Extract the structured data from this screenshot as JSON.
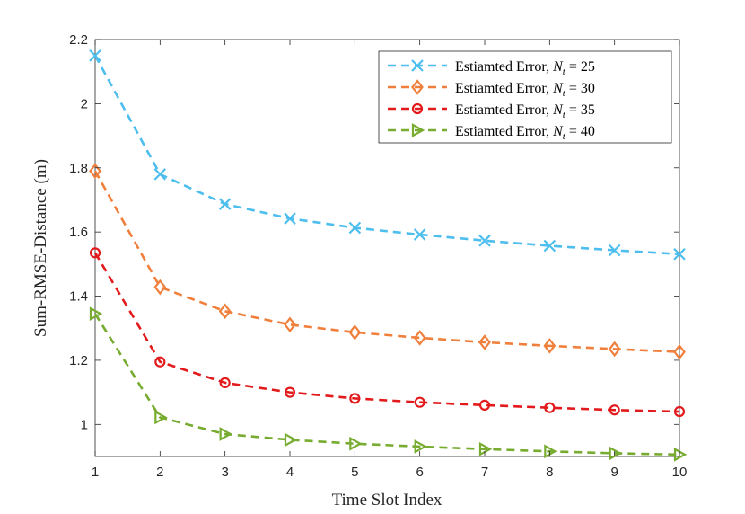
{
  "chart_data": {
    "type": "line",
    "title": "",
    "xlabel": "Time Slot Index",
    "ylabel": "Sum-RMSE-Distance (m)",
    "xlim": [
      1,
      10
    ],
    "ylim": [
      0.9,
      2.2
    ],
    "xticks": [
      1,
      2,
      3,
      4,
      5,
      6,
      7,
      8,
      9,
      10
    ],
    "yticks": [
      1,
      1.2,
      1.4,
      1.6,
      1.8,
      2,
      2.2
    ],
    "ytick_labels": [
      "1",
      "1.2",
      "1.4",
      "1.6",
      "1.8",
      "2",
      "2.2"
    ],
    "grid": false,
    "legend_position": "top-right",
    "x": [
      1,
      2,
      3,
      4,
      5,
      6,
      7,
      8,
      9,
      10
    ],
    "series": [
      {
        "name": "Estiamted Error, N_t = 25",
        "legend_prefix": "Estiamted Error, ",
        "legend_sym": "N",
        "legend_sub": "t",
        "legend_suffix": " = 25",
        "color": "#4DBEEE",
        "marker": "x",
        "values": [
          2.15,
          1.78,
          1.687,
          1.642,
          1.613,
          1.592,
          1.573,
          1.557,
          1.543,
          1.531
        ]
      },
      {
        "name": "Estiamted Error, N_t = 30",
        "legend_prefix": "Estiamted Error, ",
        "legend_sym": "N",
        "legend_sub": "t",
        "legend_suffix": " = 30",
        "color": "#F07F3C",
        "marker": "diamond",
        "values": [
          1.79,
          1.428,
          1.353,
          1.311,
          1.287,
          1.27,
          1.256,
          1.245,
          1.235,
          1.226
        ]
      },
      {
        "name": "Estiamted Error, N_t = 35",
        "legend_prefix": "Estiamted Error, ",
        "legend_sym": "N",
        "legend_sub": "t",
        "legend_suffix": " = 35",
        "color": "#E31A1C",
        "marker": "circle",
        "values": [
          1.535,
          1.195,
          1.13,
          1.1,
          1.081,
          1.069,
          1.06,
          1.052,
          1.045,
          1.04
        ]
      },
      {
        "name": "Estiamted Error, N_t = 40",
        "legend_prefix": "Estiamted Error, ",
        "legend_sym": "N",
        "legend_sub": "t",
        "legend_suffix": " = 40",
        "color": "#77AC30",
        "marker": "triangle-right",
        "values": [
          1.345,
          1.022,
          0.97,
          0.952,
          0.94,
          0.931,
          0.923,
          0.916,
          0.91,
          0.906
        ]
      }
    ]
  }
}
